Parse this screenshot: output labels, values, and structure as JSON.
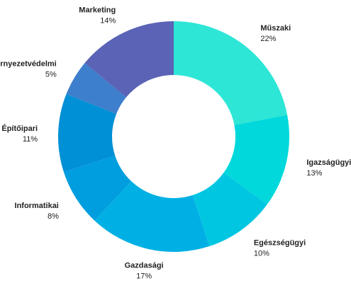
{
  "chart_data": {
    "type": "pie",
    "donut": true,
    "title": "",
    "legend": "none",
    "slices": [
      {
        "label": "Műszaki",
        "value": 22,
        "display": "22%",
        "color": "#2ee6d6"
      },
      {
        "label": "Igazságügyi",
        "value": 13,
        "display": "13%",
        "color": "#00d8dc"
      },
      {
        "label": "Egészségügyi",
        "value": 10,
        "display": "10%",
        "color": "#00c6e2"
      },
      {
        "label": "Gazdasági",
        "value": 17,
        "display": "17%",
        "color": "#00b0e4"
      },
      {
        "label": "Informatikai",
        "value": 8,
        "display": "8%",
        "color": "#009ede"
      },
      {
        "label": "Építőipari",
        "value": 11,
        "display": "11%",
        "color": "#0090d6"
      },
      {
        "label": "Környezetvédelmi",
        "value": 5,
        "display": "5%",
        "color": "#3d7fcc"
      },
      {
        "label": "Marketing",
        "value": 14,
        "display": "14%",
        "color": "#5a63b6"
      }
    ]
  }
}
